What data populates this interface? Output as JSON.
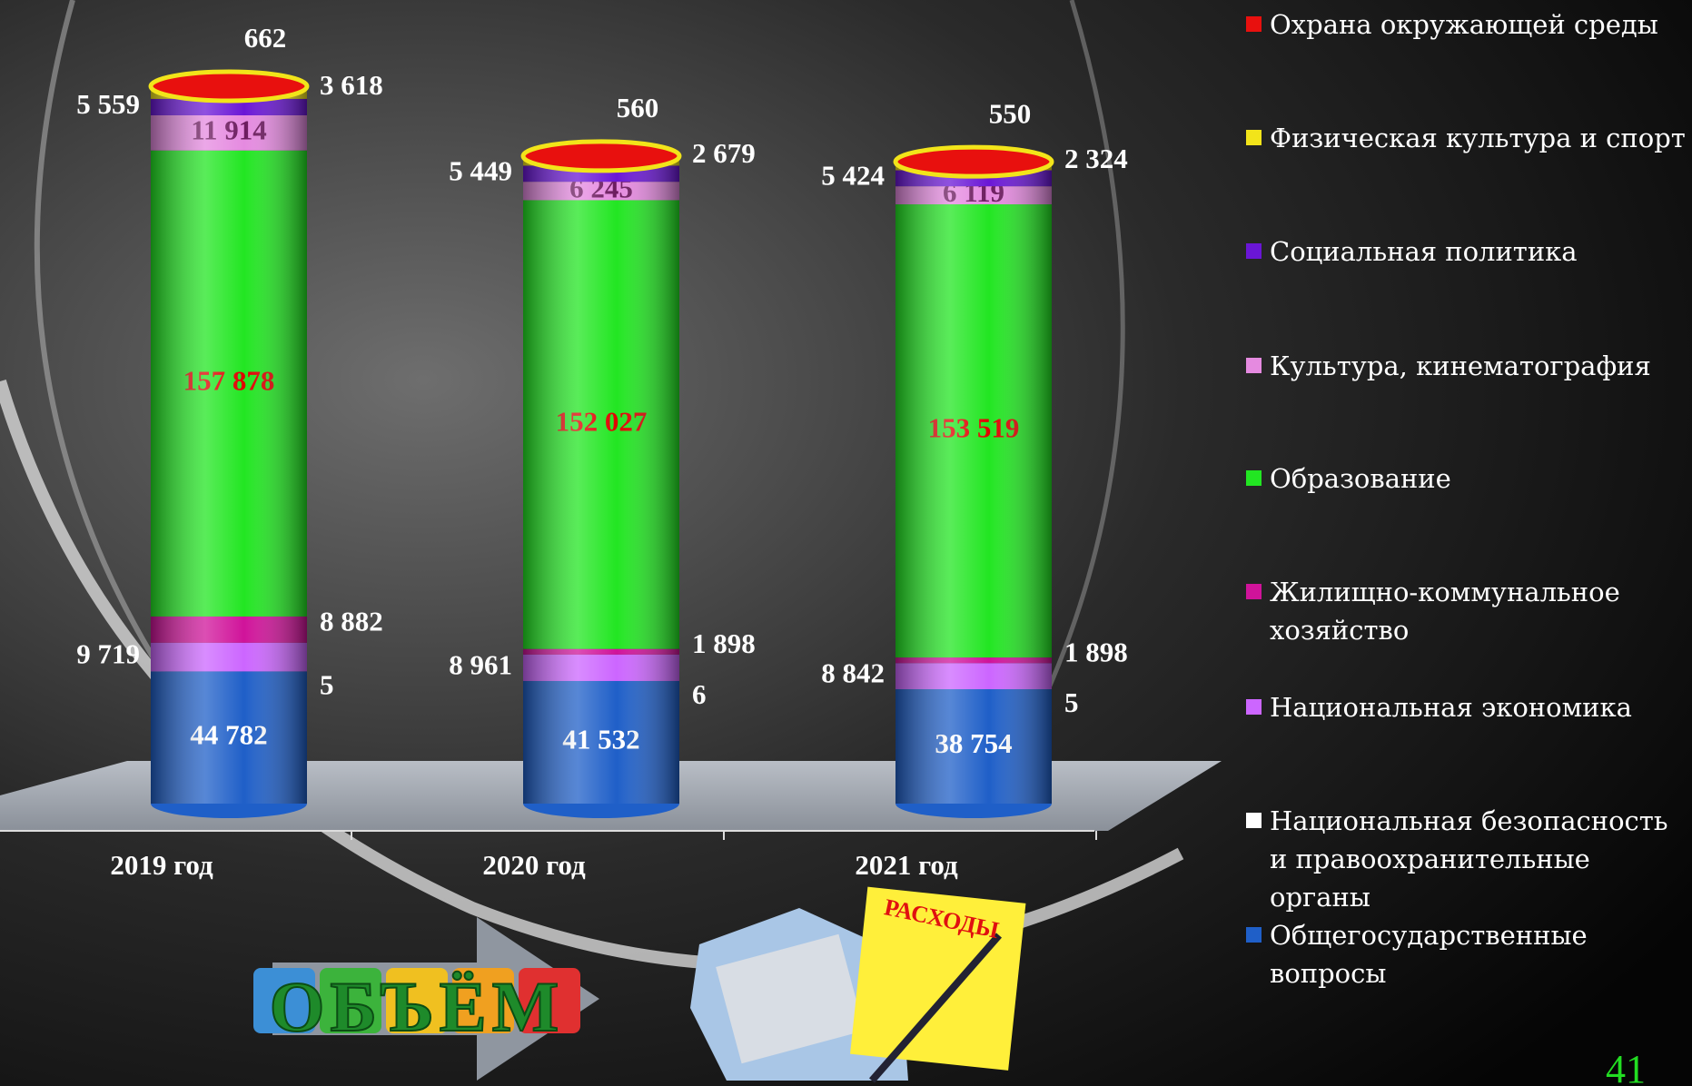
{
  "chart_data": {
    "type": "stacked-cylinder",
    "categories": [
      "2019 год",
      "2020 год",
      "2021 год"
    ],
    "series": [
      {
        "name": "Общегосударственные вопросы",
        "color": "#1f5fc8",
        "values": [
          44782,
          41532,
          38754
        ],
        "value_labels": [
          "44 782",
          "41 532",
          "38 754"
        ]
      },
      {
        "name": "Национальная безопасность и правоохранительные органы",
        "color": "#ffffff",
        "values": [
          5,
          6,
          5
        ]
      },
      {
        "name": "Национальная экономика",
        "color": "#cc66ff",
        "values": [
          9719,
          8961,
          8842
        ],
        "value_labels": [
          "9 719",
          "8 961",
          "8 842"
        ]
      },
      {
        "name": "Жилищно-коммунальное хозяйство",
        "color": "#d0139a",
        "values": [
          8882,
          1898,
          1898
        ],
        "value_labels": [
          "8 882",
          "1 898",
          "1 898"
        ]
      },
      {
        "name": "Образование",
        "color": "#22e622",
        "values": [
          157878,
          152027,
          153519
        ],
        "value_labels": [
          "157 878",
          "152 027",
          "153 519"
        ]
      },
      {
        "name": "Культура, кинематография",
        "color": "#e58ae0",
        "values": [
          11914,
          6245,
          6119
        ],
        "value_labels": [
          "11 914",
          "6 245",
          "6 119"
        ]
      },
      {
        "name": "Социальная политика",
        "color": "#6a16d6",
        "values": [
          5559,
          5449,
          5424
        ],
        "value_labels": [
          "5 559",
          "5 449",
          "5 424"
        ]
      },
      {
        "name": "Физическая культура и спорт",
        "color": "#f2e41a",
        "values": [
          3618,
          2679,
          2324
        ],
        "value_labels": [
          "3 618",
          "2 679",
          "2 324"
        ]
      },
      {
        "name": "Охрана окружающей среды",
        "color": "#e8100e",
        "values": [
          662,
          560,
          550
        ]
      }
    ]
  },
  "decor": {
    "volume_word": "ОБЪЁМ",
    "expenses_note": "РАСХОДЫ"
  },
  "page_number": "41"
}
